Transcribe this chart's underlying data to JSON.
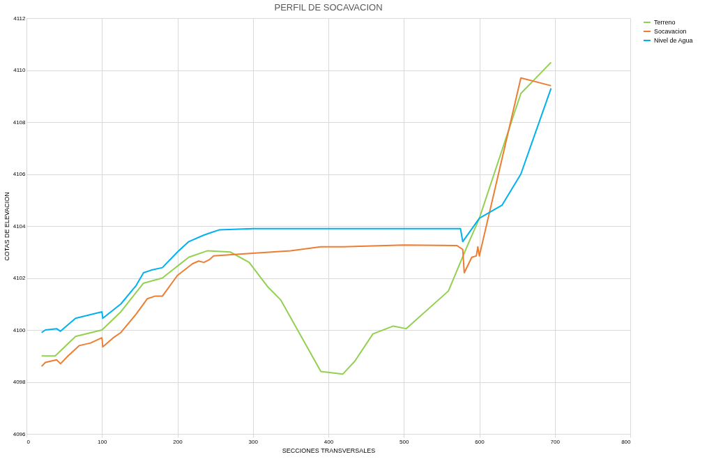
{
  "chart_data": {
    "type": "line",
    "title": "PERFIL DE SOCAVACION",
    "xlabel": "SECCIONES TRANSVERSALES",
    "ylabel": "COTAS DE ELEVACION",
    "xlim": [
      0,
      800
    ],
    "xticks": [
      0,
      100,
      200,
      300,
      400,
      500,
      600,
      700,
      800
    ],
    "ylim": [
      4096,
      4112
    ],
    "yticks": [
      4096,
      4098,
      4100,
      4102,
      4104,
      4106,
      4108,
      4110,
      4112
    ],
    "grid": true,
    "legend": "right",
    "marker": "none",
    "line_style": "solid",
    "series": [
      {
        "name": "Terreno",
        "color": "#92d050",
        "x": [
          20,
          38,
          65,
          100,
          125,
          155,
          180,
          215,
          240,
          270,
          295,
          320,
          337,
          365,
          390,
          419,
          435,
          459,
          486,
          503,
          559,
          582,
          600,
          655,
          695
        ],
        "values": [
          4099.0,
          4099.0,
          4099.75,
          4100.0,
          4100.7,
          4101.8,
          4102.0,
          4102.8,
          4103.05,
          4103.0,
          4102.6,
          4101.65,
          4101.15,
          4099.7,
          4098.4,
          4098.3,
          4098.8,
          4099.85,
          4100.15,
          4100.05,
          4101.5,
          4103.1,
          4104.3,
          4109.1,
          4110.3
        ]
      },
      {
        "name": "Socavacion",
        "color": "#ed7d31",
        "x": [
          20,
          25,
          40,
          45,
          55,
          70,
          85,
          100,
          101,
          115,
          125,
          145,
          160,
          170,
          180,
          200,
          220,
          228,
          235,
          242,
          248,
          300,
          350,
          390,
          420,
          500,
          570,
          578,
          580,
          590,
          596,
          598,
          600,
          655,
          695
        ],
        "values": [
          4098.6,
          4098.75,
          4098.85,
          4098.7,
          4099.0,
          4099.4,
          4099.5,
          4099.7,
          4099.35,
          4099.7,
          4099.9,
          4100.6,
          4101.2,
          4101.3,
          4101.3,
          4102.1,
          4102.55,
          4102.65,
          4102.6,
          4102.7,
          4102.85,
          4102.95,
          4103.05,
          4103.2,
          4103.2,
          4103.27,
          4103.25,
          4103.1,
          4102.2,
          4102.8,
          4102.85,
          4103.2,
          4102.85,
          4109.7,
          4109.4
        ]
      },
      {
        "name": "Nivel de Agua",
        "color": "#00b0f0",
        "x": [
          20,
          25,
          40,
          45,
          65,
          100,
          101,
          125,
          145,
          155,
          165,
          180,
          200,
          215,
          235,
          245,
          255,
          300,
          575,
          578,
          600,
          630,
          655,
          695
        ],
        "values": [
          4099.9,
          4100.0,
          4100.05,
          4099.95,
          4100.45,
          4100.7,
          4100.45,
          4101.0,
          4101.7,
          4102.2,
          4102.3,
          4102.4,
          4103.0,
          4103.4,
          4103.65,
          4103.75,
          4103.85,
          4103.9,
          4103.9,
          4103.4,
          4104.3,
          4104.8,
          4106.0,
          4109.3
        ]
      }
    ]
  }
}
